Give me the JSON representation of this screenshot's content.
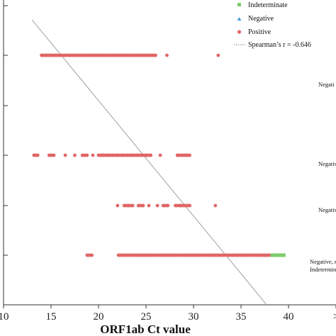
{
  "chart_data": {
    "type": "scatter",
    "title": "",
    "xlabel": "ORF1ab Ct value",
    "ylabel": "",
    "xlim": [
      10,
      42
    ],
    "x_ticks": [
      "10",
      "15",
      "20",
      "25",
      "30",
      "35",
      "40",
      ">"
    ],
    "grid": false,
    "legend": {
      "placement": "top-right",
      "entries": [
        {
          "label": "Indeterminate",
          "color": "#7ccd6a",
          "marker": "square"
        },
        {
          "label": "Negative",
          "color": "#4f9fd6",
          "marker": "triangle"
        },
        {
          "label": "Positive",
          "color": "#e06666",
          "marker": "circle"
        },
        {
          "label": "Spearman’s  r = -0.646",
          "color": "#888888",
          "marker": "dotted-line"
        }
      ]
    },
    "rows": [
      {
        "annotation": "Negati",
        "positive_x": [
          14,
          14.5,
          15,
          15.5,
          16,
          16.5,
          17,
          17.5,
          18,
          18.5,
          19,
          19.5,
          20,
          20.5,
          21,
          21.5,
          22,
          22.5,
          23,
          23.5,
          24,
          24.5,
          25,
          25.5,
          26,
          27.2,
          32.6
        ],
        "indeterminate_x": []
      },
      {
        "annotation": "Negativ",
        "positive_x": [
          13.2,
          13.6,
          14.8,
          15.3,
          16.5,
          17.5,
          18.3,
          18.8,
          19.4,
          20,
          20.5,
          21,
          21.5,
          22,
          22.5,
          23,
          23.5,
          24,
          24.5,
          25,
          25.5,
          26.5,
          28.3,
          28.8,
          29.2,
          29.6
        ],
        "indeterminate_x": []
      },
      {
        "annotation": "Negativ",
        "positive_x": [
          22,
          22.7,
          23.1,
          23.6,
          24.2,
          24.7,
          25.3,
          26.2,
          26.8,
          27.3,
          28.1,
          28.6,
          29.1,
          29.6,
          32.3
        ],
        "indeterminate_x": []
      },
      {
        "annotation_lines": [
          "Negative, r",
          "Indetermina"
        ],
        "positive_x": [
          18.8,
          19.3,
          22.1,
          22.6,
          23.1,
          23.6,
          24.1,
          24.6,
          25.1,
          25.6,
          26.1,
          26.6,
          27.1,
          27.6,
          28.1,
          28.6,
          29.1,
          29.6,
          30.1,
          30.6,
          31.1,
          31.6,
          32.1,
          32.6,
          33.1,
          33.6,
          34.1,
          34.6,
          35.1,
          35.6,
          36.1,
          36.6,
          37.1,
          37.6,
          38
        ],
        "indeterminate_x": [
          38.3,
          38.6,
          38.9,
          39.2,
          39.5
        ]
      }
    ],
    "trend_line": {
      "x_start": 13,
      "x_end": 37.7
    },
    "colors": {
      "positive": "#e06666",
      "indeterminate": "#7ccd6a",
      "negative": "#4f9fd6",
      "trend": "#8a8a8a",
      "axis": "#333333"
    }
  }
}
